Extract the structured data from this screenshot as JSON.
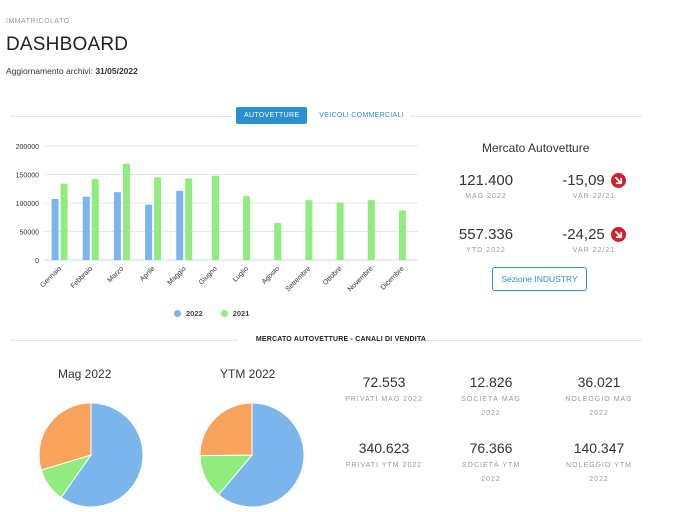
{
  "header": {
    "eyebrow": "IMMATRICOLATO",
    "title": "DASHBOARD",
    "updated_label": "Aggiornamento archivi:",
    "updated_date": "31/05/2022"
  },
  "tabs": [
    {
      "label": "AUTOVETTURE",
      "active": true
    },
    {
      "label": "VEICOLI COMMERCIALI",
      "active": false
    }
  ],
  "colors": {
    "series_2022": "#7cb5ec",
    "series_2021": "#90ed7d",
    "accent": "#2b8fd0",
    "negative": "#d0202a",
    "pie_privati": "#7cb5ec",
    "pie_societa": "#90ed7d",
    "pie_noleggio": "#f7a35c"
  },
  "chart_data": [
    {
      "type": "bar",
      "categories": [
        "Gennaio",
        "Febbraio",
        "Marzo",
        "Aprile",
        "Maggio",
        "Giugno",
        "Luglio",
        "Agosto",
        "Settembre",
        "Ottobre",
        "Novembre",
        "Dicembre"
      ],
      "series": [
        {
          "name": "2022",
          "values": [
            107000,
            111000,
            119000,
            97000,
            121400,
            null,
            null,
            null,
            null,
            null,
            null,
            null
          ]
        },
        {
          "name": "2021",
          "values": [
            134000,
            142000,
            169000,
            145000,
            143000,
            148000,
            112000,
            65000,
            105000,
            101000,
            105000,
            87000
          ]
        }
      ],
      "yticks": [
        0,
        50000,
        100000,
        150000,
        200000
      ],
      "ylim": [
        0,
        200000
      ],
      "legend_position": "bottom",
      "grid": true
    },
    {
      "type": "pie",
      "title": "Mag 2022",
      "categories": [
        "Privati",
        "Società",
        "Noleggio"
      ],
      "values": [
        72553,
        12826,
        36021
      ]
    },
    {
      "type": "pie",
      "title": "YTM 2022",
      "categories": [
        "Privati",
        "Società",
        "Noleggio"
      ],
      "values": [
        340623,
        76366,
        140347
      ]
    }
  ],
  "market": {
    "title": "Mercato Autovetture",
    "stats": [
      {
        "value": "121.400",
        "label": "MAG 2022"
      },
      {
        "value": "-15,09",
        "label": "VAR 22/21",
        "icon": "down-arrow-icon"
      },
      {
        "value": "557.336",
        "label": "YTD 2022"
      },
      {
        "value": "-24,25",
        "label": "VAR 22/21",
        "icon": "down-arrow-icon"
      }
    ],
    "button_label": "Sezione INDUSTRY"
  },
  "channels": {
    "title": "MERCATO AUTOVETTURE - CANALI DI VENDITA",
    "stats": [
      {
        "value": "72.553",
        "label": "PRIVATI MAG 2022"
      },
      {
        "value": "12.826",
        "label": "SOCIETÀ MAG 2022"
      },
      {
        "value": "36.021",
        "label": "NOLEGGIO MAG 2022"
      },
      {
        "value": "340.623",
        "label": "PRIVATI YTM 2022"
      },
      {
        "value": "76.366",
        "label": "SOCIETÀ YTM 2022"
      },
      {
        "value": "140.347",
        "label": "NOLEGGIO YTM 2022"
      }
    ]
  }
}
